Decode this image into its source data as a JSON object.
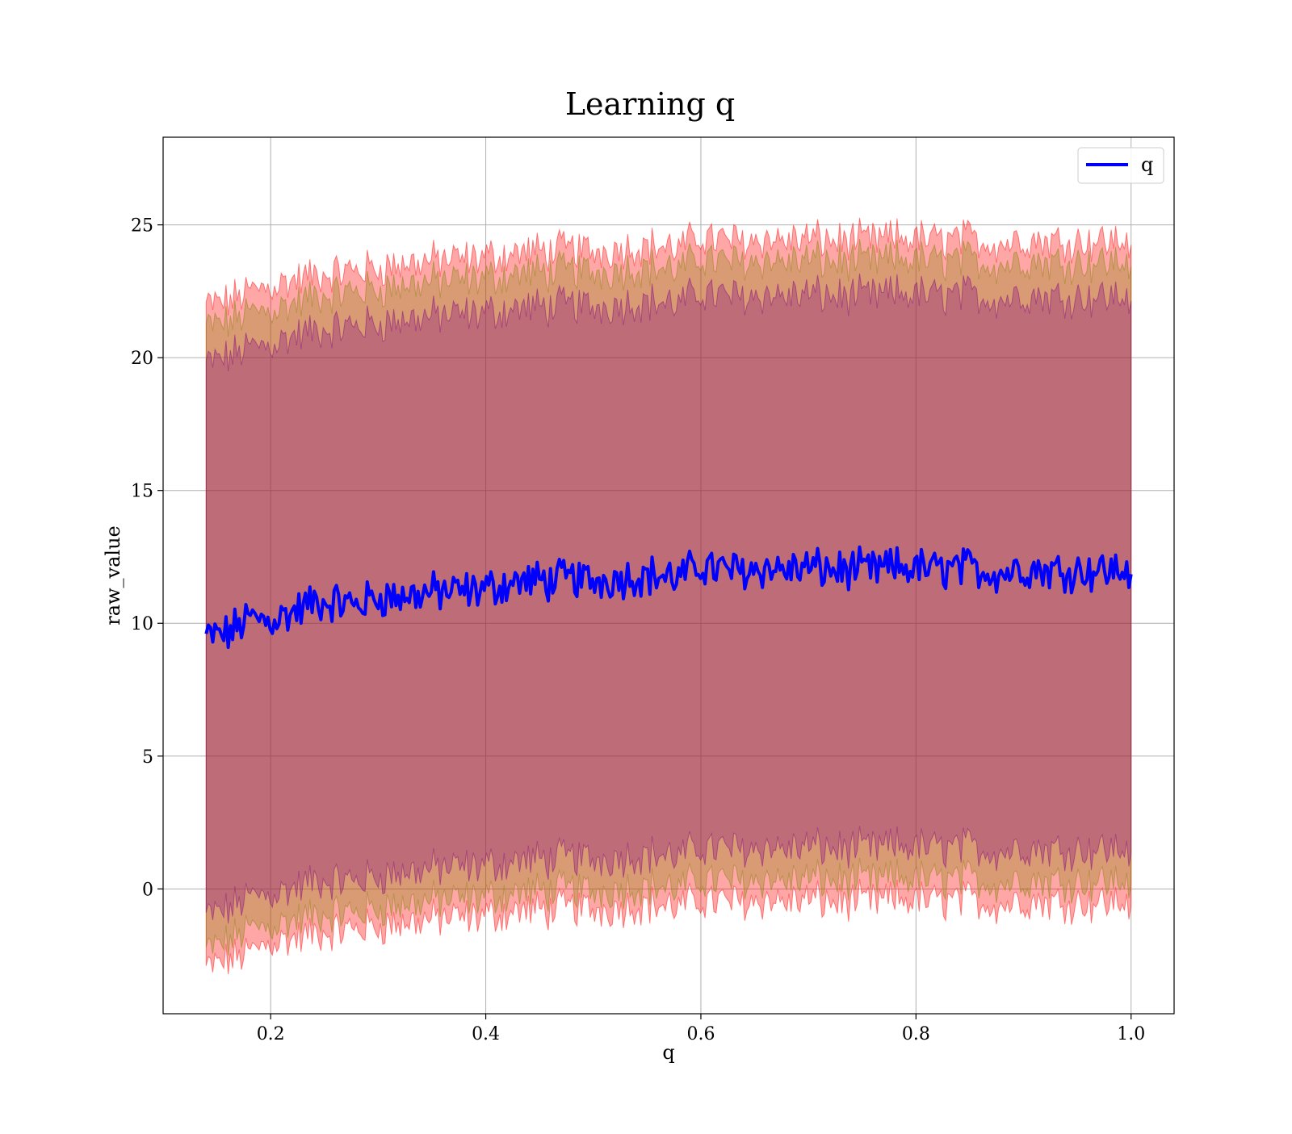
{
  "chart_data": {
    "type": "line",
    "title": "Learning q",
    "xlabel": "q",
    "ylabel": "raw_value",
    "xlim": [
      0.1,
      1.04
    ],
    "ylim": [
      -4.7,
      28.3
    ],
    "x_ticks": [
      {
        "value": 0.2,
        "label": "0.2"
      },
      {
        "value": 0.4,
        "label": "0.4"
      },
      {
        "value": 0.6,
        "label": "0.6"
      },
      {
        "value": 0.8,
        "label": "0.8"
      },
      {
        "value": 1.0,
        "label": "1.0"
      }
    ],
    "y_ticks": [
      {
        "value": 0,
        "label": "0"
      },
      {
        "value": 5,
        "label": "5"
      },
      {
        "value": 10,
        "label": "10"
      },
      {
        "value": 15,
        "label": "15"
      },
      {
        "value": 20,
        "label": "20"
      },
      {
        "value": 25,
        "label": "25"
      }
    ],
    "grid": true,
    "legend": {
      "placement": "top-right",
      "entries": [
        {
          "name": "q",
          "color": "#0000ff"
        }
      ]
    },
    "series": [
      {
        "name": "q",
        "color": "#0000ff",
        "x": [
          0.14,
          0.16,
          0.18,
          0.2,
          0.22,
          0.24,
          0.26,
          0.28,
          0.3,
          0.32,
          0.34,
          0.36,
          0.38,
          0.4,
          0.42,
          0.44,
          0.46,
          0.48,
          0.5,
          0.52,
          0.54,
          0.56,
          0.58,
          0.6,
          0.62,
          0.64,
          0.66,
          0.68,
          0.7,
          0.72,
          0.74,
          0.76,
          0.78,
          0.8,
          0.82,
          0.84,
          0.86,
          0.88,
          0.9,
          0.92,
          0.94,
          0.96,
          0.98,
          1.0
        ],
        "values": [
          9.5,
          9.6,
          10.2,
          10.1,
          10.4,
          10.8,
          10.8,
          10.7,
          11.0,
          11.0,
          11.1,
          11.2,
          11.2,
          11.3,
          11.5,
          11.6,
          11.6,
          11.7,
          11.6,
          11.7,
          11.8,
          11.8,
          11.7,
          12.2,
          12.0,
          12.0,
          12.1,
          12.0,
          12.1,
          12.0,
          12.0,
          12.0,
          12.1,
          12.1,
          12.0,
          12.1,
          12.0,
          11.9,
          12.1,
          12.0,
          12.0,
          12.0,
          12.0,
          12.0
        ]
      }
    ],
    "bands": [
      {
        "color": "#ff0000",
        "opacity": 0.35,
        "lower": [
          -3.0,
          -2.7,
          -2.4,
          -2.0,
          -1.9,
          -1.7,
          -1.6,
          -1.5,
          -1.4,
          -1.3,
          -1.2,
          -1.1,
          -1.1,
          -1.0,
          -0.9,
          -0.8,
          -0.8,
          -0.7,
          -0.8,
          -0.7,
          -0.6,
          -0.6,
          -0.7,
          -0.4,
          -0.5,
          -0.5,
          -0.4,
          -0.5,
          -0.4,
          -0.5,
          -0.5,
          -0.5,
          -0.4,
          -0.4,
          -0.5,
          -0.4,
          -0.5,
          -0.6,
          -0.4,
          -0.5,
          -0.5,
          -0.5,
          -0.5,
          -0.5
        ],
        "upper": [
          22.0,
          22.1,
          22.5,
          22.7,
          22.9,
          23.1,
          23.2,
          23.3,
          23.4,
          23.5,
          23.6,
          23.7,
          23.7,
          23.8,
          23.9,
          24.0,
          24.0,
          24.1,
          24.0,
          24.1,
          24.2,
          24.2,
          24.1,
          24.6,
          24.4,
          24.4,
          24.5,
          24.4,
          24.5,
          24.4,
          24.4,
          24.4,
          24.5,
          24.5,
          24.4,
          24.5,
          24.4,
          24.3,
          24.5,
          24.4,
          24.4,
          24.4,
          24.4,
          24.4
        ]
      },
      {
        "color": "#808000",
        "opacity": 0.3,
        "lower": [
          -2.3,
          -2.0,
          -1.5,
          -1.4,
          -1.2,
          -1.0,
          -0.9,
          -0.9,
          -0.7,
          -0.6,
          -0.5,
          -0.4,
          -0.4,
          -0.3,
          -0.2,
          -0.1,
          -0.1,
          0.0,
          -0.1,
          0.0,
          0.1,
          0.1,
          0.0,
          0.4,
          0.3,
          0.3,
          0.4,
          0.3,
          0.4,
          0.3,
          0.3,
          0.3,
          0.4,
          0.4,
          0.3,
          0.4,
          0.3,
          0.2,
          0.4,
          0.3,
          0.3,
          0.3,
          0.3,
          0.3
        ],
        "upper": [
          21.2,
          21.3,
          21.7,
          21.8,
          22.0,
          22.3,
          22.4,
          22.5,
          22.6,
          22.7,
          22.8,
          22.9,
          22.9,
          23.0,
          23.1,
          23.2,
          23.2,
          23.3,
          23.2,
          23.3,
          23.4,
          23.4,
          23.3,
          23.8,
          23.6,
          23.6,
          23.7,
          23.6,
          23.7,
          23.6,
          23.6,
          23.6,
          23.7,
          23.7,
          23.6,
          23.7,
          23.6,
          23.5,
          23.7,
          23.6,
          23.6,
          23.6,
          23.6,
          23.6
        ]
      },
      {
        "color": "#800080",
        "opacity": 0.3,
        "lower": [
          -1.0,
          -0.8,
          -0.3,
          -0.2,
          0.0,
          0.3,
          0.3,
          0.3,
          0.5,
          0.6,
          0.7,
          0.8,
          0.8,
          0.9,
          1.0,
          1.1,
          1.1,
          1.2,
          1.1,
          1.2,
          1.3,
          1.3,
          1.2,
          1.6,
          1.5,
          1.5,
          1.6,
          1.5,
          1.6,
          1.5,
          1.5,
          1.5,
          1.6,
          1.6,
          1.5,
          1.6,
          1.5,
          1.4,
          1.6,
          1.5,
          1.5,
          1.5,
          1.5,
          1.5
        ],
        "upper": [
          19.8,
          20.0,
          20.4,
          20.5,
          20.8,
          21.0,
          21.1,
          21.2,
          21.3,
          21.4,
          21.5,
          21.6,
          21.6,
          21.7,
          21.8,
          21.9,
          21.9,
          22.0,
          21.9,
          22.0,
          22.1,
          22.1,
          22.0,
          22.5,
          22.3,
          22.3,
          22.4,
          22.3,
          22.4,
          22.3,
          22.3,
          22.3,
          22.4,
          22.4,
          22.3,
          22.4,
          22.3,
          22.2,
          22.4,
          22.3,
          22.3,
          22.3,
          22.3,
          22.3
        ]
      }
    ]
  }
}
